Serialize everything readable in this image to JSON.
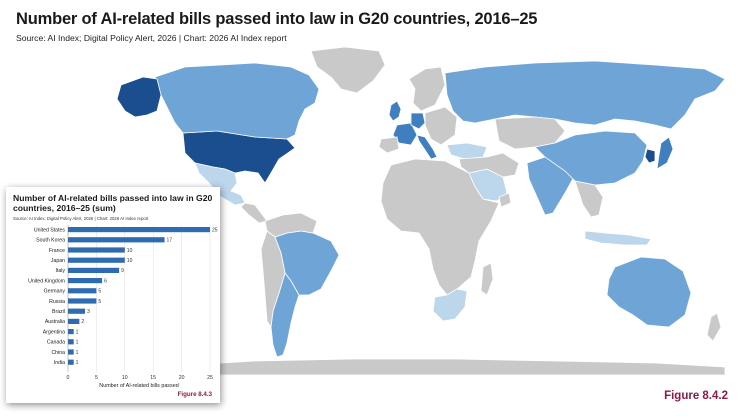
{
  "main": {
    "title": "Number of AI-related bills passed into law in G20 countries, 2016–25",
    "source": "Source: AI Index; Digital Policy Alert, 2026 | Chart: 2026 AI Index report",
    "figure_label": "Figure 8.4.2"
  },
  "map_colors": {
    "darkest": "#1a4e8e",
    "dark": "#3f7fc0",
    "medium": "#6fa5d6",
    "light": "#bcd6ec",
    "none": "#c9c9c9",
    "border": "#ffffff"
  },
  "map_regions": [
    {
      "name": "United States",
      "bills": 25,
      "shade": "darkest"
    },
    {
      "name": "Canada",
      "bills": 1,
      "shade": "medium"
    },
    {
      "name": "Alaska (United States)",
      "bills": 25,
      "shade": "darkest"
    },
    {
      "name": "Greenland",
      "bills": null,
      "shade": "none"
    },
    {
      "name": "Mexico",
      "bills": 0,
      "shade": "light"
    },
    {
      "name": "Central America",
      "bills": null,
      "shade": "none"
    },
    {
      "name": "Brazil",
      "bills": 3,
      "shade": "medium"
    },
    {
      "name": "Argentina",
      "bills": 1,
      "shade": "medium"
    },
    {
      "name": "Northern South America",
      "bills": null,
      "shade": "none"
    },
    {
      "name": "Western South America",
      "bills": null,
      "shade": "none"
    },
    {
      "name": "United Kingdom",
      "bills": 6,
      "shade": "dark"
    },
    {
      "name": "France",
      "bills": 10,
      "shade": "dark"
    },
    {
      "name": "Germany",
      "bills": 5,
      "shade": "dark"
    },
    {
      "name": "Italy",
      "bills": 9,
      "shade": "dark"
    },
    {
      "name": "Rest of Europe",
      "bills": null,
      "shade": "none"
    },
    {
      "name": "Russia",
      "bills": 5,
      "shade": "medium"
    },
    {
      "name": "Turkey",
      "bills": 0,
      "shade": "light"
    },
    {
      "name": "Saudi Arabia",
      "bills": 0,
      "shade": "light"
    },
    {
      "name": "Middle East",
      "bills": null,
      "shade": "none"
    },
    {
      "name": "Central Asia",
      "bills": null,
      "shade": "none"
    },
    {
      "name": "India",
      "bills": 1,
      "shade": "medium"
    },
    {
      "name": "China",
      "bills": 1,
      "shade": "medium"
    },
    {
      "name": "Southeast Asia",
      "bills": null,
      "shade": "none"
    },
    {
      "name": "Indonesia",
      "bills": 0,
      "shade": "light"
    },
    {
      "name": "South Korea",
      "bills": 17,
      "shade": "darkest"
    },
    {
      "name": "Japan",
      "bills": 10,
      "shade": "dark"
    },
    {
      "name": "Africa",
      "bills": null,
      "shade": "none"
    },
    {
      "name": "South Africa",
      "bills": 0,
      "shade": "light"
    },
    {
      "name": "Madagascar",
      "bills": null,
      "shade": "none"
    },
    {
      "name": "Australia",
      "bills": 2,
      "shade": "medium"
    },
    {
      "name": "New Zealand",
      "bills": null,
      "shade": "none"
    },
    {
      "name": "Antarctica",
      "bills": null,
      "shade": "none"
    }
  ],
  "inset": {
    "title": "Number of AI-related bills passed into law in G20 countries, 2016–25 (sum)",
    "source": "Source: AI Index; Digital Policy Alert, 2026 | Chart: 2026 AI Index report",
    "figure_label": "Figure 8.4.3"
  },
  "chart_data": {
    "type": "bar",
    "orientation": "horizontal",
    "title": "Number of AI-related bills passed into law in G20 countries, 2016–25 (sum)",
    "xlabel": "Number of AI-related bills passed",
    "ylabel": "",
    "categories": [
      "United States",
      "South Korea",
      "France",
      "Japan",
      "Italy",
      "United Kingdom",
      "Germany",
      "Russia",
      "Brazil",
      "Australia",
      "Argentina",
      "Canada",
      "China",
      "India"
    ],
    "values": [
      25,
      17,
      10,
      10,
      9,
      6,
      5,
      5,
      3,
      2,
      1,
      1,
      1,
      1
    ],
    "xlim": [
      0,
      25
    ],
    "xticks": [
      0,
      5,
      10,
      15,
      20,
      25
    ],
    "bar_color": "#2f6bb0",
    "grid": true
  }
}
